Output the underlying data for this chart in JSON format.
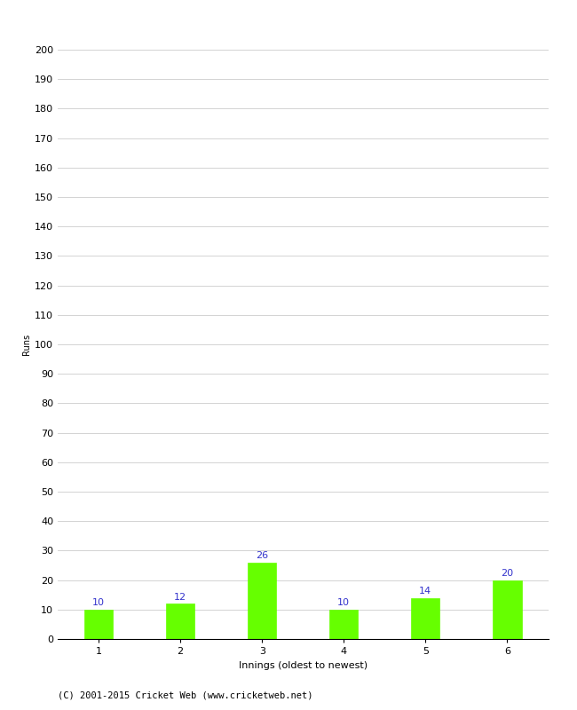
{
  "categories": [
    "1",
    "2",
    "3",
    "4",
    "5",
    "6"
  ],
  "values": [
    10,
    12,
    26,
    10,
    14,
    20
  ],
  "bar_color": "#66ff00",
  "bar_edge_color": "#66ff00",
  "xlabel": "Innings (oldest to newest)",
  "ylabel": "Runs",
  "ylim": [
    0,
    200
  ],
  "yticks": [
    0,
    10,
    20,
    30,
    40,
    50,
    60,
    70,
    80,
    90,
    100,
    110,
    120,
    130,
    140,
    150,
    160,
    170,
    180,
    190,
    200
  ],
  "label_color": "#3333cc",
  "label_fontsize": 8,
  "axis_tick_fontsize": 8,
  "ylabel_fontsize": 7,
  "xlabel_fontsize": 8,
  "footer_text": "(C) 2001-2015 Cricket Web (www.cricketweb.net)",
  "footer_fontsize": 7.5,
  "background_color": "#ffffff",
  "grid_color": "#cccccc",
  "bar_width": 0.35
}
